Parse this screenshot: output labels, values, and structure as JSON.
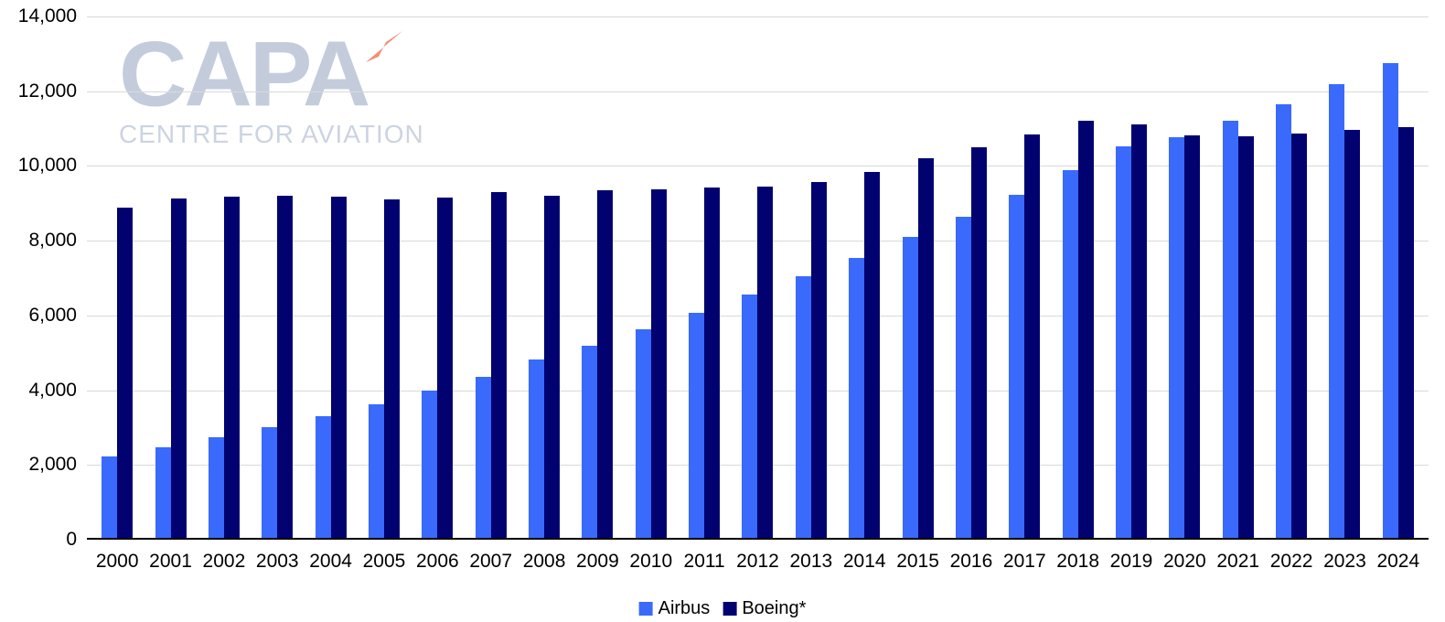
{
  "watermark": {
    "brand": "CAPA",
    "tagline": "CENTRE FOR AVIATION"
  },
  "colors": {
    "airbus": "#3a6afb",
    "boeing": "#010270",
    "gridline": "#d9d9d9",
    "axis": "#000000",
    "watermark_text": "#c4ccdc",
    "watermark_tagline": "#ccd3e1",
    "watermark_arrow": "#ec6a4d"
  },
  "y_axis": {
    "ticks": [
      {
        "label": "0",
        "value": 0
      },
      {
        "label": "2,000",
        "value": 2000
      },
      {
        "label": "4,000",
        "value": 4000
      },
      {
        "label": "6,000",
        "value": 6000
      },
      {
        "label": "8,000",
        "value": 8000
      },
      {
        "label": "10,000",
        "value": 10000
      },
      {
        "label": "12,000",
        "value": 12000
      },
      {
        "label": "14,000",
        "value": 14000
      }
    ]
  },
  "chart_data": {
    "type": "bar",
    "title": "",
    "xlabel": "",
    "ylabel": "",
    "ylim": [
      0,
      14000
    ],
    "grid": true,
    "legend_position": "bottom",
    "categories": [
      "2000",
      "2001",
      "2002",
      "2003",
      "2004",
      "2005",
      "2006",
      "2007",
      "2008",
      "2009",
      "2010",
      "2011",
      "2012",
      "2013",
      "2014",
      "2015",
      "2016",
      "2017",
      "2018",
      "2019",
      "2020",
      "2021",
      "2022",
      "2023",
      "2024"
    ],
    "series": [
      {
        "name": "Airbus",
        "color": "#3a6afb",
        "values": [
          2230,
          2470,
          2740,
          3010,
          3310,
          3630,
          3980,
          4350,
          4810,
          5200,
          5630,
          6070,
          6550,
          7040,
          7540,
          8090,
          8640,
          9220,
          9890,
          10520,
          10770,
          11200,
          11640,
          12190,
          12750
        ]
      },
      {
        "name": "Boeing*",
        "color": "#010270",
        "values": [
          8890,
          9120,
          9170,
          9210,
          9180,
          9110,
          9150,
          9300,
          9200,
          9360,
          9370,
          9420,
          9440,
          9560,
          9830,
          10210,
          10500,
          10850,
          11210,
          11120,
          10810,
          10790,
          10870,
          10970,
          11030
        ]
      }
    ]
  }
}
